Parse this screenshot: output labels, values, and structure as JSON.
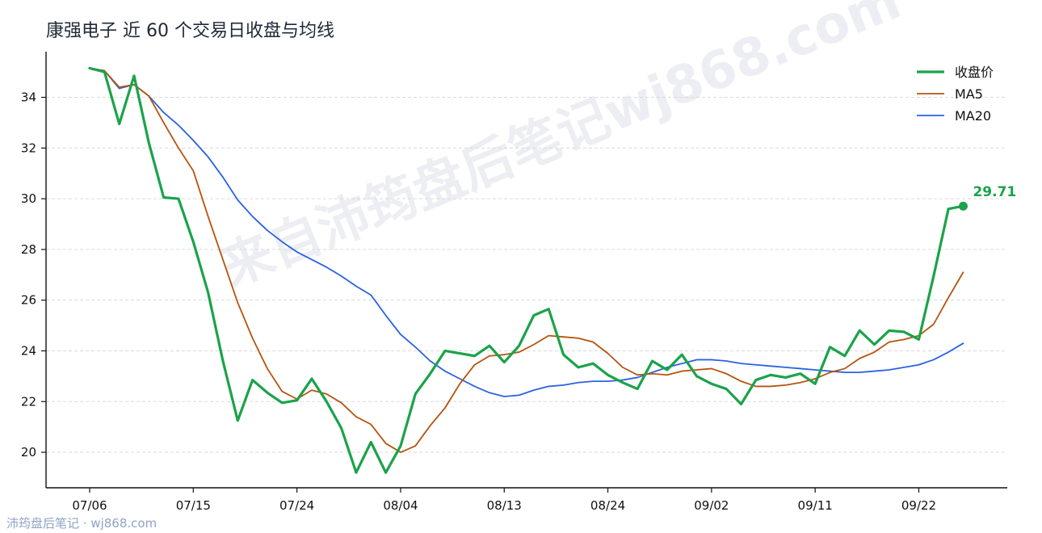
{
  "title": "康强电子 近 60 个交易日收盘与均线",
  "watermark_text": "来自沛筠盘后笔记wj868.com",
  "footer_watermark": "沛筠盘后笔记 · wj868.com",
  "colors": {
    "close": "#1aa34a",
    "ma5": "#b5540f",
    "ma20": "#2a62e0"
  },
  "chart_data": {
    "type": "line",
    "ylim": [
      18.6,
      35.8
    ],
    "yticks": [
      20,
      22,
      24,
      26,
      28,
      30,
      32,
      34
    ],
    "x_tick_labels": [
      "07/06",
      "07/15",
      "07/24",
      "08/04",
      "08/13",
      "08/24",
      "09/02",
      "09/11",
      "09/22"
    ],
    "x_tick_index": [
      0,
      7,
      14,
      21,
      28,
      35,
      42,
      49,
      56
    ],
    "n_points": 60,
    "grid": "horizontal dashed",
    "legend_position": "top-right",
    "end_label": "29.71",
    "series": [
      {
        "name": "收盘价",
        "values": [
          35.15,
          35.0,
          32.95,
          34.85,
          32.2,
          30.05,
          30.0,
          28.3,
          26.3,
          23.6,
          21.25,
          22.85,
          22.35,
          21.95,
          22.05,
          22.9,
          22.0,
          20.95,
          19.2,
          20.4,
          19.2,
          20.25,
          22.3,
          23.1,
          24.0,
          23.9,
          23.8,
          24.2,
          23.55,
          24.2,
          25.4,
          25.65,
          23.85,
          23.35,
          23.5,
          23.05,
          22.75,
          22.5,
          23.6,
          23.25,
          23.85,
          23.0,
          22.7,
          22.5,
          21.9,
          22.85,
          23.05,
          22.95,
          23.1,
          22.7,
          24.15,
          23.8,
          24.8,
          24.25,
          24.8,
          24.75,
          24.45,
          26.95,
          29.6,
          29.71
        ]
      },
      {
        "name": "MA5",
        "values": [
          35.15,
          35.05,
          34.4,
          34.5,
          34.05,
          33.0,
          32.0,
          31.1,
          29.3,
          27.6,
          25.9,
          24.5,
          23.3,
          22.4,
          22.1,
          22.45,
          22.3,
          21.95,
          21.4,
          21.1,
          20.35,
          20.0,
          20.25,
          21.05,
          21.75,
          22.7,
          23.45,
          23.8,
          23.85,
          23.95,
          24.25,
          24.6,
          24.55,
          24.5,
          24.35,
          23.9,
          23.35,
          23.05,
          23.1,
          23.05,
          23.2,
          23.25,
          23.3,
          23.1,
          22.8,
          22.6,
          22.6,
          22.65,
          22.75,
          22.9,
          23.15,
          23.3,
          23.7,
          23.95,
          24.35,
          24.45,
          24.6,
          25.05,
          26.1,
          27.1
        ]
      },
      {
        "name": "MA20",
        "values": [
          35.15,
          35.05,
          34.35,
          34.5,
          34.05,
          33.4,
          32.9,
          32.3,
          31.65,
          30.85,
          29.95,
          29.3,
          28.75,
          28.3,
          27.9,
          27.6,
          27.3,
          26.95,
          26.55,
          26.2,
          25.4,
          24.65,
          24.15,
          23.6,
          23.2,
          22.9,
          22.6,
          22.35,
          22.2,
          22.25,
          22.45,
          22.6,
          22.65,
          22.75,
          22.8,
          22.8,
          22.85,
          22.95,
          23.15,
          23.35,
          23.5,
          23.65,
          23.65,
          23.6,
          23.5,
          23.45,
          23.4,
          23.35,
          23.3,
          23.25,
          23.2,
          23.15,
          23.15,
          23.2,
          23.25,
          23.35,
          23.45,
          23.65,
          23.95,
          24.3
        ]
      }
    ]
  }
}
